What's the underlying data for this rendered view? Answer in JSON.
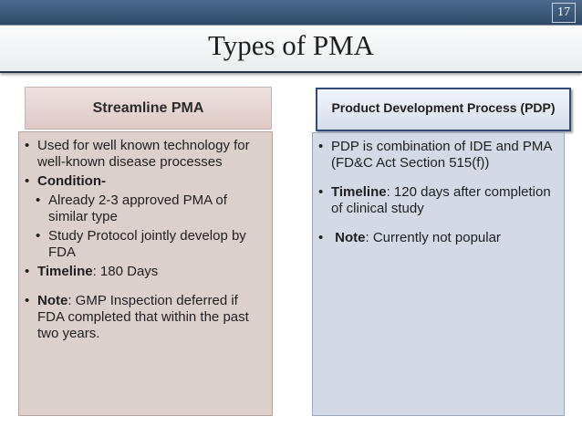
{
  "slide_number": "17",
  "title": "Types of PMA",
  "left": {
    "heading": "Streamline PMA",
    "items": [
      {
        "bold": "",
        "text": "Used for well known technology for well-known disease processes"
      },
      {
        "bold": "Condition-",
        "text": ""
      },
      {
        "bold": "",
        "text": "Already 2-3 approved PMA of similar type"
      },
      {
        "bold": "",
        "text": "Study Protocol jointly develop by FDA"
      },
      {
        "bold": "Timeline",
        "text": ": 180 Days"
      },
      {
        "bold": "Note",
        "text": ": GMP Inspection deferred if FDA completed that within the past two years."
      }
    ]
  },
  "right": {
    "heading": "Product Development Process (PDP)",
    "items": [
      {
        "bold": "",
        "text": "PDP is combination of IDE and PMA (FD&C Act Section 515(f))"
      },
      {
        "bold": "Timeline",
        "text": ": 120 days after completion of clinical study"
      },
      {
        "bold": "Note",
        "text": ": Currently not popular"
      }
    ]
  },
  "bullet_char": "•",
  "colors": {
    "top_bar": "#3a5778",
    "left_box": "#dcd0cd",
    "right_box": "#d3dae6",
    "right_header_border": "#324c75"
  }
}
